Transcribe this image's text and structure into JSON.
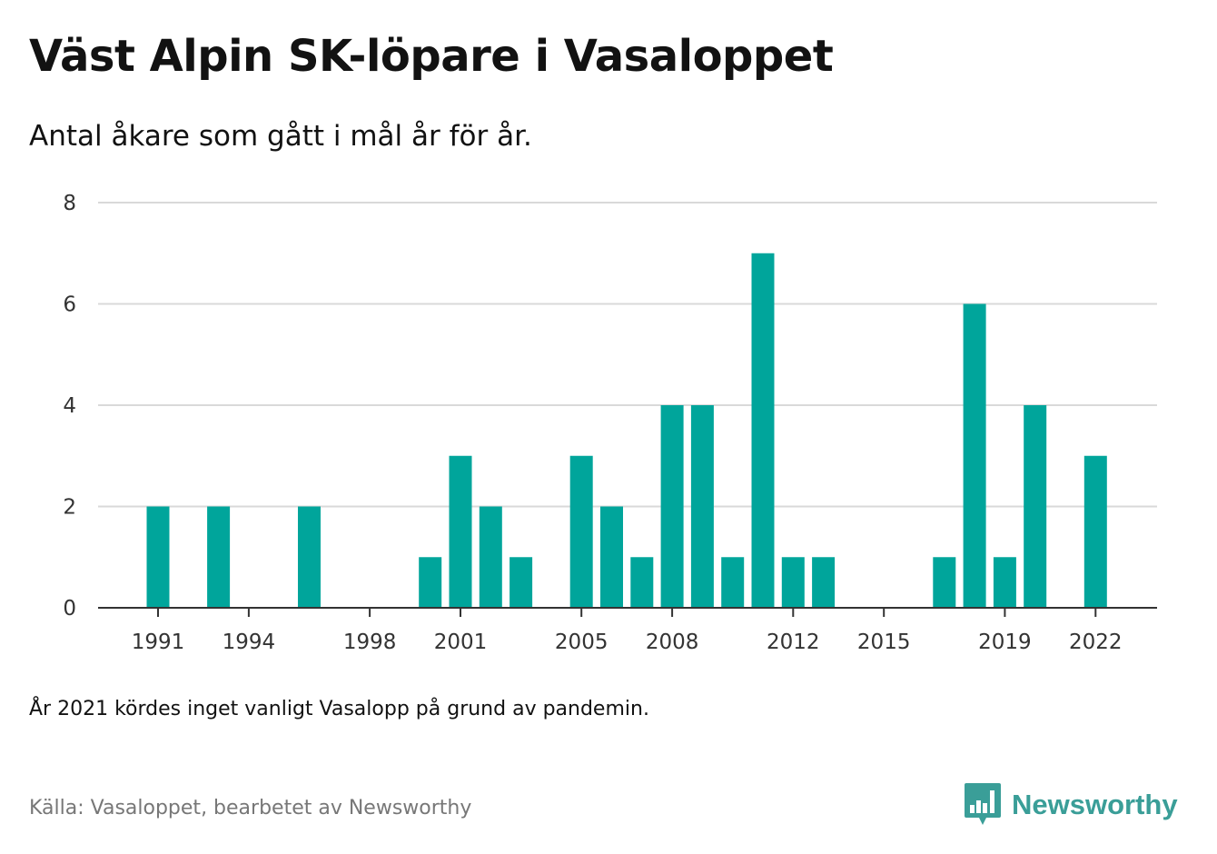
{
  "title": "Väst Alpin SK-löpare i Vasaloppet",
  "subtitle": "Antal åkare som gått i mål år för år.",
  "note": "År 2021 kördes inget vanligt Vasalopp på grund av pandemin.",
  "source": "Källa: Vasaloppet, bearbetet av Newsworthy",
  "logo": {
    "text": "Newsworthy",
    "icon": "newsworthy-bar-chart-logo-icon"
  },
  "colors": {
    "bar": "#00a59b",
    "grid": "#d9d9d9",
    "axis": "#333333",
    "brand": "#3a9e98",
    "source": "#777777"
  },
  "chart_data": {
    "type": "bar",
    "x": [
      1991,
      1992,
      1993,
      1994,
      1995,
      1996,
      1997,
      1998,
      1999,
      2000,
      2001,
      2002,
      2003,
      2004,
      2005,
      2006,
      2007,
      2008,
      2009,
      2010,
      2011,
      2012,
      2013,
      2014,
      2015,
      2016,
      2017,
      2018,
      2019,
      2020,
      2021,
      2022
    ],
    "values": [
      2,
      0,
      2,
      0,
      0,
      2,
      0,
      0,
      0,
      1,
      3,
      2,
      1,
      0,
      3,
      2,
      1,
      4,
      4,
      1,
      7,
      1,
      1,
      0,
      0,
      0,
      1,
      6,
      1,
      4,
      0,
      3
    ],
    "x_tick_labels": [
      "1991",
      "1994",
      "1998",
      "2001",
      "2005",
      "2008",
      "2012",
      "2015",
      "2019",
      "2022"
    ],
    "y_tick_labels": [
      "0",
      "2",
      "4",
      "6",
      "8"
    ],
    "ylim": [
      0,
      8
    ],
    "grid": true,
    "legend": "none"
  }
}
